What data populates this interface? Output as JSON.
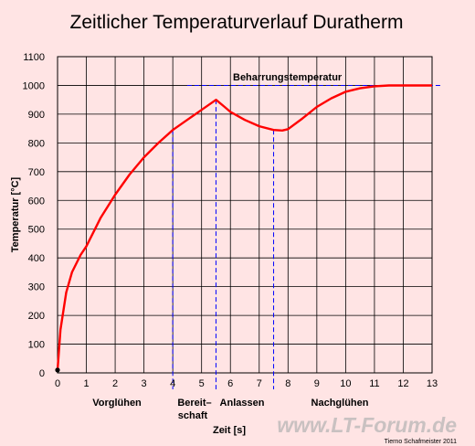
{
  "chart_data": {
    "type": "line",
    "title": "Zeitlicher Temperaturverlauf Duratherm",
    "xlabel": "Zeit [s]",
    "ylabel": "Temperatur [°C]",
    "xlim": [
      0,
      13
    ],
    "ylim": [
      0,
      1100
    ],
    "x_ticks": [
      "0",
      "1",
      "2",
      "3",
      "4",
      "5",
      "6",
      "7",
      "8",
      "9",
      "10",
      "11",
      "12",
      "13"
    ],
    "y_ticks": [
      "0",
      "100",
      "200",
      "300",
      "400",
      "500",
      "600",
      "700",
      "800",
      "900",
      "1000",
      "1100"
    ],
    "grid": true,
    "series": [
      {
        "color": "#ff0000",
        "x": [
          0,
          0.1,
          0.3,
          0.5,
          0.8,
          1.0,
          1.5,
          2.0,
          2.5,
          3.0,
          3.5,
          4.0,
          4.5,
          5.0,
          5.5,
          5.8,
          6.0,
          6.5,
          7.0,
          7.5,
          7.8,
          8.0,
          8.5,
          9.0,
          9.5,
          10.0,
          10.5,
          11.0,
          11.5,
          12.0,
          13.0
        ],
        "y": [
          10,
          150,
          280,
          350,
          410,
          440,
          540,
          620,
          690,
          750,
          800,
          845,
          880,
          915,
          950,
          925,
          908,
          880,
          858,
          845,
          843,
          848,
          885,
          925,
          955,
          978,
          990,
          997,
          1000,
          1000,
          1000
        ]
      }
    ],
    "reference_line": {
      "label": "Beharrungstemperatur",
      "y": 1000,
      "x_start": 4.5,
      "x_end": 13.3
    },
    "phase_lines_x": [
      4.0,
      5.5,
      7.5
    ],
    "phases": [
      {
        "label": "Vorglühen"
      },
      {
        "label_line1": "Bereit–",
        "label_line2": "schaft"
      },
      {
        "label": "Anlassen"
      },
      {
        "label": "Nachglühen"
      }
    ],
    "colors": {
      "curve": "#ff0000",
      "guides": "#0000ff",
      "background": "#ffe4e4"
    }
  },
  "credit": "Tierno Schafmeister 2011",
  "watermark": "www.LT-Forum.de"
}
